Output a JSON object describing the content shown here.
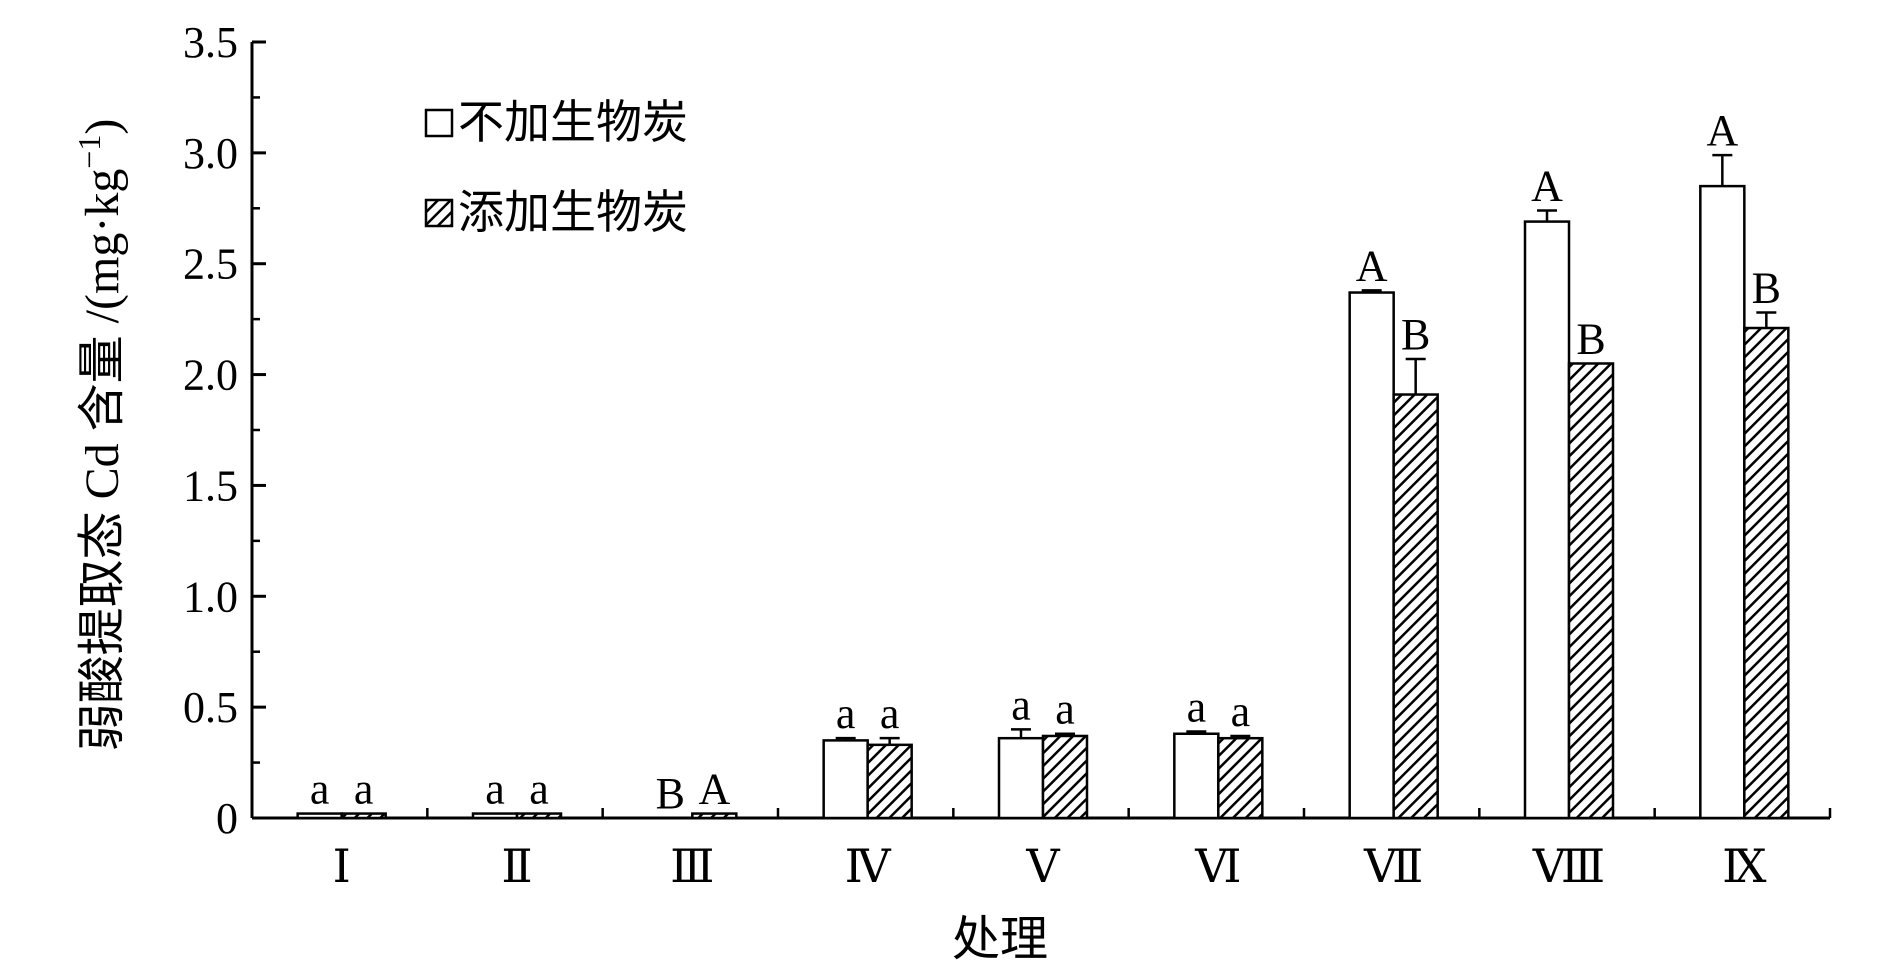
{
  "chart_data": {
    "type": "bar",
    "xlabel": "处理",
    "ylabel": "弱酸提取态 Cd 含量 /(mg·kg",
    "ylabel_sup": "−1",
    "ylabel_close": ")",
    "ylim": [
      0,
      3.5
    ],
    "yticks": [
      0,
      0.5,
      1.0,
      1.5,
      2.0,
      2.5,
      3.0,
      3.5
    ],
    "ytick_labels": [
      "0",
      "0.5",
      "1.0",
      "1.5",
      "2.0",
      "2.5",
      "3.0",
      "3.5"
    ],
    "categories": [
      "Ⅰ",
      "Ⅱ",
      "Ⅲ",
      "Ⅳ",
      "Ⅴ",
      "Ⅵ",
      "Ⅶ",
      "Ⅷ",
      "Ⅸ"
    ],
    "legend_position": "top-left",
    "series": [
      {
        "name": "不加生物炭",
        "fill": "#ffffff",
        "pattern": "none",
        "values": [
          0.02,
          0.02,
          0.0,
          0.35,
          0.36,
          0.38,
          2.37,
          2.69,
          2.85
        ],
        "errors": [
          0.0,
          0.0,
          0.0,
          0.01,
          0.04,
          0.01,
          0.01,
          0.05,
          0.14
        ],
        "labels": [
          "a",
          "a",
          "B",
          "a",
          "a",
          "a",
          "A",
          "A",
          "A"
        ]
      },
      {
        "name": "添加生物炭",
        "fill": "#ffffff",
        "pattern": "hatch",
        "values": [
          0.02,
          0.02,
          0.02,
          0.33,
          0.37,
          0.36,
          1.91,
          2.05,
          2.21
        ],
        "errors": [
          0.0,
          0.0,
          0.0,
          0.03,
          0.01,
          0.01,
          0.16,
          0.0,
          0.07
        ],
        "labels": [
          "a",
          "a",
          "A",
          "a",
          "a",
          "a",
          "B",
          "B",
          "B"
        ]
      }
    ]
  }
}
